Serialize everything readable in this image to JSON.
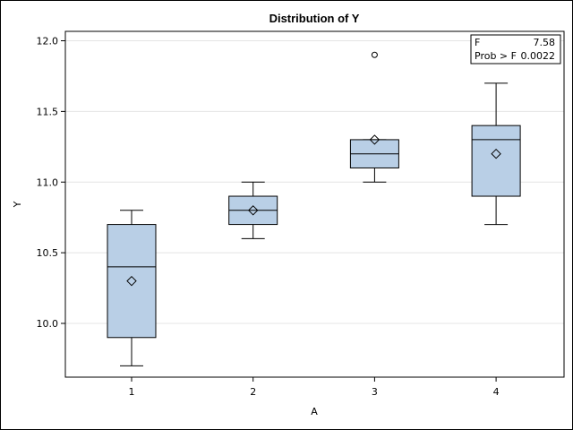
{
  "chart_data": {
    "type": "box",
    "title": "Distribution of Y",
    "xlabel": "A",
    "ylabel": "Y",
    "ylim": [
      9.68,
      12.1
    ],
    "yticks": [
      "10.0",
      "10.5",
      "11.0",
      "11.5",
      "12.0"
    ],
    "grid": true,
    "categories": [
      "1",
      "2",
      "3",
      "4"
    ],
    "boxes": [
      {
        "category": "1",
        "whisker_low": 9.7,
        "q1": 9.9,
        "median": 10.4,
        "q3": 10.7,
        "whisker_high": 10.8,
        "mean": 10.3,
        "outliers": []
      },
      {
        "category": "2",
        "whisker_low": 10.6,
        "q1": 10.7,
        "median": 10.8,
        "q3": 10.9,
        "whisker_high": 11.0,
        "mean": 10.8,
        "outliers": []
      },
      {
        "category": "3",
        "whisker_low": 11.0,
        "q1": 11.1,
        "median": 11.2,
        "q3": 11.3,
        "whisker_high": 11.3,
        "mean": 11.3,
        "outliers": [
          11.9
        ]
      },
      {
        "category": "4",
        "whisker_low": 10.7,
        "q1": 10.9,
        "median": 11.3,
        "q3": 11.4,
        "whisker_high": 11.7,
        "mean": 11.2,
        "outliers": []
      }
    ],
    "stats_inset": {
      "placement": "top-right",
      "rows": [
        {
          "label": "F",
          "value": "7.58"
        },
        {
          "label": "Prob > F",
          "value": "0.0022"
        }
      ]
    }
  },
  "colors": {
    "box_fill": "#b9cfe6",
    "stroke": "#000000",
    "grid": "#e4e4e4",
    "plot_border": "#000000"
  }
}
